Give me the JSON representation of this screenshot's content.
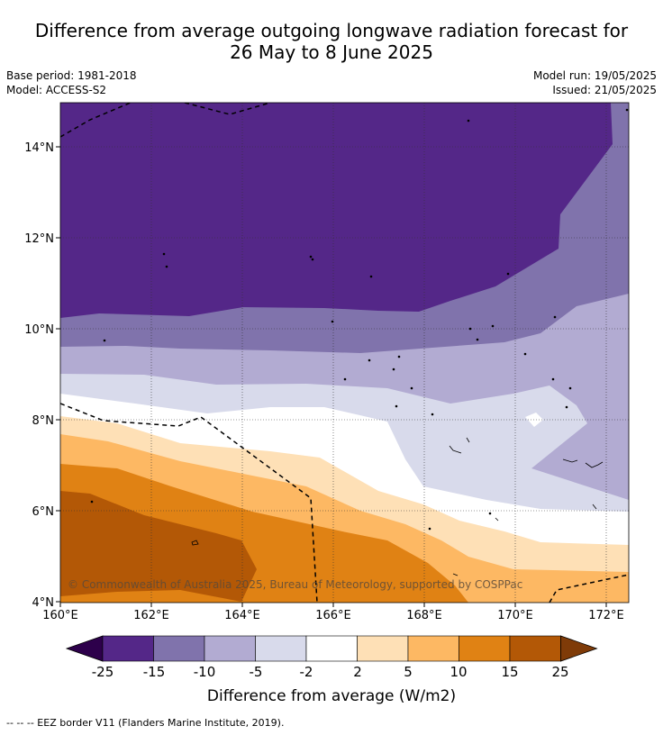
{
  "title_line1": "Difference from average outgoing longwave radiation forecast for",
  "title_line2": "26 May to 8 June 2025",
  "base_period": "Base period: 1981-2018",
  "model": "Model: ACCESS-S2",
  "model_run": "Model run: 19/05/2025",
  "issued": "Issued: 21/05/2025",
  "map": {
    "lat_ticks": [
      "14°N",
      "12°N",
      "10°N",
      "8°N",
      "6°N",
      "4°N"
    ],
    "lon_ticks": [
      "160°E",
      "162°E",
      "164°E",
      "166°E",
      "168°E",
      "170°E",
      "172°E"
    ],
    "copyright": "© Commonwealth of Australia 2025, Bureau of Meteorology, supported by COSPPac"
  },
  "colorbar": {
    "tick_labels": [
      "-25",
      "-15",
      "-10",
      "-5",
      "-2",
      "2",
      "5",
      "10",
      "15",
      "25"
    ],
    "label": "Difference from average (W/m2)",
    "colors": [
      "#2d004b",
      "#542788",
      "#8073ac",
      "#b2abd2",
      "#d8daeb",
      "#ffffff",
      "#fee0b6",
      "#fdb863",
      "#e08214",
      "#b35806",
      "#7f3b08"
    ]
  },
  "footnote": "--  --  -- EEZ border V11 (Flanders Marine Institute, 2019)."
}
